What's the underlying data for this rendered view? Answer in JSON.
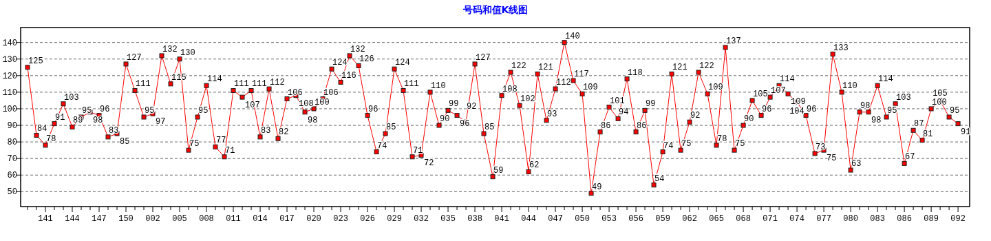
{
  "chart_data": {
    "type": "line",
    "title": "号码和值K线图",
    "categories": [
      null,
      null,
      "141",
      null,
      null,
      "144",
      null,
      null,
      "147",
      null,
      null,
      "150",
      null,
      null,
      "002",
      null,
      null,
      "005",
      null,
      null,
      "008",
      null,
      null,
      "011",
      null,
      null,
      "014",
      null,
      null,
      "017",
      null,
      null,
      "020",
      null,
      null,
      "023",
      null,
      null,
      "026",
      null,
      null,
      "029",
      null,
      null,
      "032",
      null,
      null,
      "035",
      null,
      null,
      "038",
      null,
      null,
      "041",
      null,
      null,
      "044",
      null,
      null,
      "047",
      null,
      null,
      "050",
      null,
      null,
      "053",
      null,
      null,
      "056",
      null,
      null,
      "059",
      null,
      null,
      "062",
      null,
      null,
      "065",
      null,
      null,
      "068",
      null,
      null,
      "071",
      null,
      null,
      "074",
      null,
      null,
      "077",
      null,
      null,
      "080",
      null,
      null,
      "083",
      null,
      null,
      "086",
      null,
      null,
      "089",
      null,
      null,
      "092"
    ],
    "series": [
      {
        "color": "#ff0000",
        "values": [
          125,
          84,
          78,
          91,
          103,
          89,
          95,
          98,
          96,
          83,
          85,
          127,
          111,
          95,
          97,
          132,
          115,
          130,
          75,
          95,
          114,
          77,
          71,
          111,
          107,
          111,
          83,
          112,
          82,
          106,
          108,
          98,
          100,
          106,
          124,
          116,
          132,
          126,
          96,
          74,
          85,
          124,
          111,
          71,
          72,
          110,
          90,
          99,
          96,
          92,
          127,
          85,
          59,
          108,
          122,
          102,
          62,
          121,
          93,
          112,
          140,
          117,
          109,
          49,
          86,
          101,
          94,
          118,
          86,
          99,
          54,
          74,
          121,
          75,
          92,
          122,
          109,
          78,
          137,
          75,
          90,
          105,
          96,
          107,
          114,
          109,
          104,
          96,
          73,
          75,
          133,
          110,
          63,
          98,
          98,
          114,
          95,
          103,
          67,
          87,
          81,
          100,
          105,
          95,
          91
        ]
      }
    ],
    "ylim": [
      41,
      149
    ],
    "yticks": [
      50,
      60,
      70,
      80,
      90,
      100,
      110,
      120,
      130,
      140
    ],
    "grid": "y",
    "marker": "square",
    "line_style": "solid",
    "data_labels": true
  }
}
